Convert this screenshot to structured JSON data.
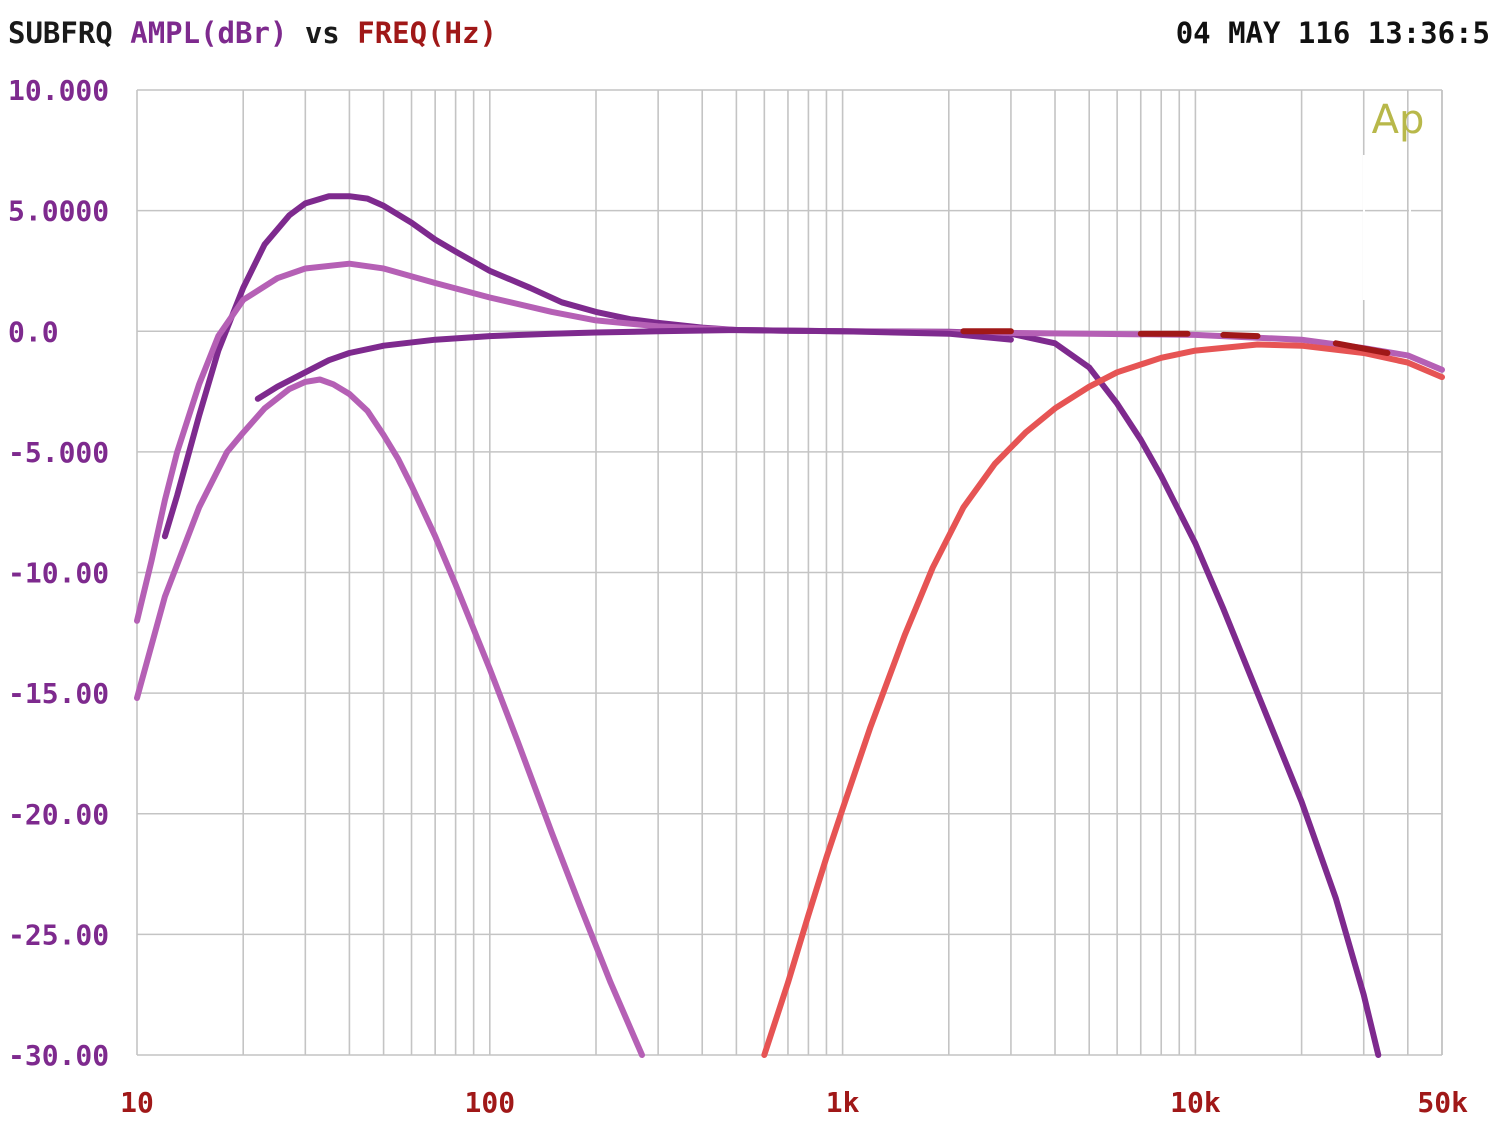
{
  "header": {
    "title": "SUBFRQ",
    "y_quantity": "AMPL(dBr)",
    "vs": "vs",
    "x_quantity": "FREQ(Hz)",
    "datetime": "04 MAY 116 13:36:5",
    "logo": "Ap"
  },
  "colors": {
    "title": "#1a1a1a",
    "y_quantity": "#7e2a8e",
    "x_quantity": "#a01818",
    "tick_y": "#7e2a8e",
    "tick_x": "#a01818",
    "grid": "#c4c4c4",
    "logo": "#b8b84a"
  },
  "chart_data": {
    "type": "line",
    "x_scale": "log",
    "xlim": [
      10,
      50000
    ],
    "ylim": [
      -30,
      10
    ],
    "grid": true,
    "xlabel": "",
    "ylabel": "",
    "y_ticks": [
      {
        "value": 10,
        "label": "10.000"
      },
      {
        "value": 5,
        "label": "5.0000"
      },
      {
        "value": 0,
        "label": "0.0"
      },
      {
        "value": -5,
        "label": "-5.000"
      },
      {
        "value": -10,
        "label": "-10.00"
      },
      {
        "value": -15,
        "label": "-15.00"
      },
      {
        "value": -20,
        "label": "-20.00"
      },
      {
        "value": -25,
        "label": "-25.00"
      },
      {
        "value": -30,
        "label": "-30.00"
      }
    ],
    "x_ticks": [
      {
        "value": 10,
        "label": "10"
      },
      {
        "value": 100,
        "label": "100"
      },
      {
        "value": 1000,
        "label": "1k"
      },
      {
        "value": 10000,
        "label": "10k"
      },
      {
        "value": 50000,
        "label": "50k"
      }
    ],
    "series": [
      {
        "color": "#7e2a8e",
        "points": [
          [
            12,
            -8.5
          ],
          [
            13,
            -6.8
          ],
          [
            15,
            -3.5
          ],
          [
            17,
            -0.8
          ],
          [
            20,
            1.8
          ],
          [
            23,
            3.6
          ],
          [
            27,
            4.8
          ],
          [
            30,
            5.3
          ],
          [
            35,
            5.6
          ],
          [
            40,
            5.6
          ],
          [
            45,
            5.5
          ],
          [
            50,
            5.2
          ],
          [
            60,
            4.5
          ],
          [
            70,
            3.8
          ],
          [
            80,
            3.3
          ],
          [
            100,
            2.5
          ],
          [
            130,
            1.8
          ],
          [
            160,
            1.2
          ],
          [
            200,
            0.8
          ],
          [
            250,
            0.5
          ],
          [
            300,
            0.35
          ],
          [
            400,
            0.15
          ],
          [
            500,
            0.05
          ],
          [
            700,
            0.02
          ],
          [
            1000,
            0.0
          ],
          [
            2000,
            -0.02
          ],
          [
            3000,
            -0.1
          ],
          [
            4000,
            -0.5
          ],
          [
            5000,
            -1.5
          ],
          [
            6000,
            -3.0
          ],
          [
            7000,
            -4.5
          ],
          [
            8000,
            -6.0
          ],
          [
            10000,
            -8.8
          ],
          [
            12000,
            -11.5
          ],
          [
            15000,
            -15.0
          ],
          [
            20000,
            -19.5
          ],
          [
            25000,
            -23.5
          ],
          [
            30000,
            -27.5
          ],
          [
            33000,
            -30.0
          ]
        ]
      },
      {
        "color": "#b560b5",
        "points": [
          [
            10,
            -12.0
          ],
          [
            11,
            -9.5
          ],
          [
            12,
            -7.0
          ],
          [
            13,
            -5.0
          ],
          [
            15,
            -2.2
          ],
          [
            17,
            -0.2
          ],
          [
            20,
            1.3
          ],
          [
            25,
            2.2
          ],
          [
            30,
            2.6
          ],
          [
            40,
            2.8
          ],
          [
            50,
            2.6
          ],
          [
            70,
            2.0
          ],
          [
            100,
            1.4
          ],
          [
            150,
            0.8
          ],
          [
            200,
            0.45
          ],
          [
            300,
            0.2
          ],
          [
            500,
            0.05
          ],
          [
            1000,
            0.0
          ],
          [
            5000,
            -0.1
          ],
          [
            10000,
            -0.15
          ],
          [
            20000,
            -0.35
          ],
          [
            30000,
            -0.7
          ],
          [
            40000,
            -1.0
          ],
          [
            50000,
            -1.6
          ]
        ]
      },
      {
        "color": "#7e2a8e",
        "points": [
          [
            22,
            -2.8
          ],
          [
            25,
            -2.3
          ],
          [
            30,
            -1.7
          ],
          [
            35,
            -1.2
          ],
          [
            40,
            -0.9
          ],
          [
            50,
            -0.6
          ],
          [
            70,
            -0.35
          ],
          [
            100,
            -0.2
          ],
          [
            150,
            -0.1
          ],
          [
            200,
            -0.05
          ],
          [
            300,
            0.0
          ],
          [
            500,
            0.05
          ],
          [
            1000,
            0.0
          ],
          [
            2000,
            -0.1
          ],
          [
            3000,
            -0.35
          ]
        ]
      },
      {
        "color": "#b560b5",
        "points": [
          [
            10,
            -15.2
          ],
          [
            12,
            -11.0
          ],
          [
            15,
            -7.3
          ],
          [
            18,
            -5.0
          ],
          [
            20,
            -4.2
          ],
          [
            23,
            -3.2
          ],
          [
            27,
            -2.4
          ],
          [
            30,
            -2.1
          ],
          [
            33,
            -2.0
          ],
          [
            36,
            -2.2
          ],
          [
            40,
            -2.6
          ],
          [
            45,
            -3.3
          ],
          [
            50,
            -4.3
          ],
          [
            55,
            -5.3
          ],
          [
            60,
            -6.4
          ],
          [
            70,
            -8.5
          ],
          [
            80,
            -10.5
          ],
          [
            100,
            -14.0
          ],
          [
            120,
            -17.0
          ],
          [
            150,
            -20.8
          ],
          [
            180,
            -23.8
          ],
          [
            220,
            -27.0
          ],
          [
            270,
            -30.0
          ]
        ]
      },
      {
        "color": "#e65454",
        "points": [
          [
            600,
            -30.0
          ],
          [
            700,
            -27.0
          ],
          [
            800,
            -24.2
          ],
          [
            900,
            -21.8
          ],
          [
            1000,
            -19.8
          ],
          [
            1200,
            -16.4
          ],
          [
            1500,
            -12.6
          ],
          [
            1800,
            -9.8
          ],
          [
            2200,
            -7.3
          ],
          [
            2700,
            -5.5
          ],
          [
            3300,
            -4.2
          ],
          [
            4000,
            -3.2
          ],
          [
            5000,
            -2.3
          ],
          [
            6000,
            -1.7
          ],
          [
            8000,
            -1.1
          ],
          [
            10000,
            -0.8
          ],
          [
            15000,
            -0.55
          ],
          [
            20000,
            -0.6
          ],
          [
            30000,
            -0.9
          ],
          [
            40000,
            -1.3
          ],
          [
            50000,
            -1.9
          ]
        ]
      },
      {
        "color": "#a01818",
        "points": [
          [
            2200,
            0.0
          ],
          [
            3000,
            0.0
          ]
        ]
      },
      {
        "color": "#a01818",
        "points": [
          [
            7000,
            -0.1
          ],
          [
            9500,
            -0.1
          ]
        ]
      },
      {
        "color": "#a01818",
        "points": [
          [
            12000,
            -0.15
          ],
          [
            15000,
            -0.2
          ]
        ]
      },
      {
        "color": "#a01818",
        "points": [
          [
            25000,
            -0.5
          ],
          [
            35000,
            -0.9
          ]
        ]
      }
    ]
  }
}
